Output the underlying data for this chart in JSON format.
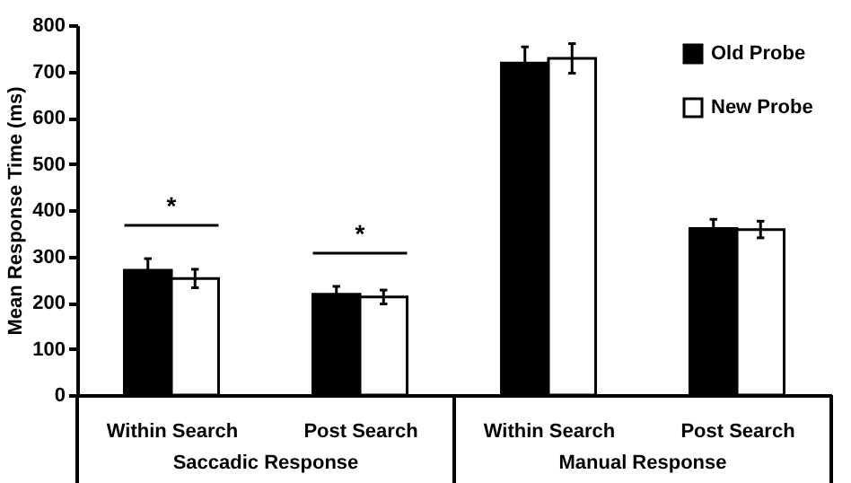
{
  "chart_data": {
    "type": "bar",
    "ylabel": "Mean Response Time (ms)",
    "categories": [
      "Within Search",
      "Post Search",
      "Within Search",
      "Post Search"
    ],
    "series": [
      {
        "name": "Old Probe",
        "color": "#000000",
        "values": [
          270,
          218,
          718,
          360
        ],
        "errors": [
          25,
          17,
          35,
          20
        ]
      },
      {
        "name": "New Probe",
        "color": "#ffffff",
        "values": [
          252,
          212,
          728,
          358
        ],
        "errors": [
          20,
          15,
          32,
          18
        ]
      }
    ],
    "ylim": [
      0,
      800
    ],
    "yticks": [
      0,
      100,
      200,
      300,
      400,
      500,
      600,
      700,
      800
    ],
    "grid": false,
    "legend": "top right",
    "annotations": [
      "*",
      "*",
      "Saccadic Response",
      "Manual Response"
    ]
  }
}
